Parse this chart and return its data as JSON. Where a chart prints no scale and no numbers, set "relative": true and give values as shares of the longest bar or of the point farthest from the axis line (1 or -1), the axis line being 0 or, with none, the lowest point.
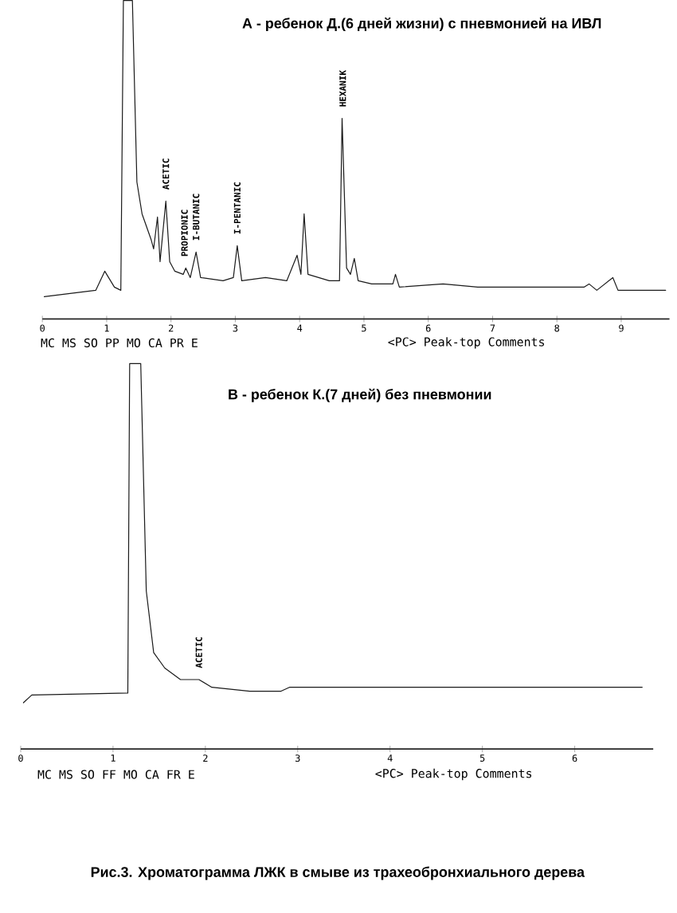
{
  "chart_data": [
    {
      "type": "line",
      "title": "А - ребенок Д.(6 дней жизни) с пневмонией на ИВЛ",
      "relative": true,
      "xlim": [
        0,
        9.75
      ],
      "xticks": [
        0,
        1,
        2,
        3,
        4,
        5,
        6,
        7,
        8,
        9
      ],
      "x": [
        0.03,
        0.83,
        0.97,
        1.12,
        1.22,
        1.26,
        1.4,
        1.47,
        1.55,
        1.69,
        1.73,
        1.79,
        1.83,
        1.92,
        1.98,
        2.06,
        2.19,
        2.23,
        2.3,
        2.39,
        2.46,
        2.81,
        2.97,
        3.03,
        3.1,
        3.47,
        3.8,
        3.96,
        4.02,
        4.07,
        4.13,
        4.46,
        4.62,
        4.66,
        4.73,
        4.79,
        4.85,
        4.91,
        5.12,
        5.45,
        5.49,
        5.55,
        6.23,
        6.77,
        7.59,
        8.42,
        8.5,
        8.62,
        8.87,
        8.95,
        9.07,
        9.69
      ],
      "series": [
        {
          "color": "#1a1a1a",
          "values": [
            0.07,
            0.09,
            0.15,
            0.1,
            0.09,
            1,
            1,
            0.43,
            0.33,
            0.25,
            0.22,
            0.32,
            0.18,
            0.37,
            0.18,
            0.15,
            0.14,
            0.16,
            0.13,
            0.21,
            0.13,
            0.12,
            0.13,
            0.23,
            0.12,
            0.13,
            0.12,
            0.2,
            0.14,
            0.33,
            0.14,
            0.12,
            0.12,
            0.63,
            0.16,
            0.14,
            0.19,
            0.12,
            0.11,
            0.11,
            0.14,
            0.1,
            0.11,
            0.1,
            0.1,
            0.1,
            0.11,
            0.09,
            0.13,
            0.09,
            0.09,
            0.09
          ]
        }
      ],
      "annotations": [
        {
          "text": "ACETIC",
          "x": 1.92,
          "y": 0.37
        },
        {
          "text": "PROPIONIC",
          "x": 2.21,
          "y": 0.16
        },
        {
          "text": "I-BUTANIC",
          "x": 2.39,
          "y": 0.21
        },
        {
          "text": "I-PENTANIC",
          "x": 3.03,
          "y": 0.23
        },
        {
          "text": "HEXANIK",
          "x": 4.67,
          "y": 0.63
        },
        "MC MS SO PP MO CA PR E",
        "<PC> Peak-top Comments"
      ]
    },
    {
      "type": "line",
      "title": "В - ребенок К.(7 дней) без пневмонии",
      "relative": true,
      "xlim": [
        0,
        6.85
      ],
      "xticks": [
        0,
        1,
        2,
        3,
        4,
        5,
        6
      ],
      "x": [
        0.03,
        0.12,
        1.16,
        1.18,
        1.3,
        1.36,
        1.44,
        1.56,
        1.73,
        1.93,
        2.07,
        2.48,
        2.82,
        2.91,
        3.8,
        4.95,
        6.1,
        6.73
      ],
      "series": [
        {
          "color": "#1a1a1a",
          "values": [
            0.12,
            0.14,
            0.145,
            1,
            1,
            0.41,
            0.25,
            0.21,
            0.18,
            0.18,
            0.16,
            0.15,
            0.15,
            0.16,
            0.16,
            0.16,
            0.16,
            0.16
          ]
        }
      ],
      "annotations": [
        {
          "text": "ACETIC",
          "x": 1.93,
          "y": 0.18
        },
        "MC MS SO FF MO CA FR E",
        "<PC> Peak-top Comments",
        "Рис.3. Хроматограмма ЛЖК в смыве из трахеобронхиального дерева"
      ]
    }
  ]
}
